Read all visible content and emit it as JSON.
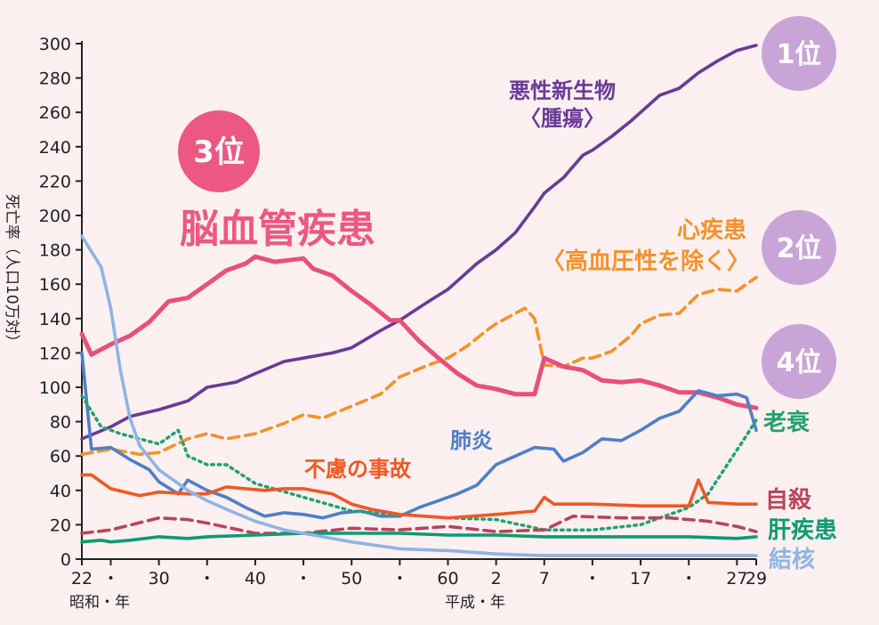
{
  "chart_data": {
    "type": "line",
    "title": "",
    "ylabel": "死亡率（人口10万対）",
    "ylim": [
      0,
      300
    ],
    "yticks": [
      0,
      20,
      40,
      60,
      80,
      100,
      120,
      140,
      160,
      180,
      200,
      220,
      240,
      260,
      280,
      300
    ],
    "x_range": [
      1947,
      2017
    ],
    "xtick_labels": [
      {
        "year": 1947,
        "label": "22"
      },
      {
        "year": 1950,
        "label": "・"
      },
      {
        "year": 1955,
        "label": "30"
      },
      {
        "year": 1960,
        "label": "・"
      },
      {
        "year": 1965,
        "label": "40"
      },
      {
        "year": 1970,
        "label": "・"
      },
      {
        "year": 1975,
        "label": "50"
      },
      {
        "year": 1980,
        "label": "・"
      },
      {
        "year": 1985,
        "label": "60"
      },
      {
        "year": 1990,
        "label": "2"
      },
      {
        "year": 1995,
        "label": "7"
      },
      {
        "year": 2000,
        "label": "・"
      },
      {
        "year": 2005,
        "label": "17"
      },
      {
        "year": 2010,
        "label": "・"
      },
      {
        "year": 2015,
        "label": "27"
      },
      {
        "year": 2017,
        "label": "29"
      }
    ],
    "era_labels": [
      "昭和・年",
      "平成・年"
    ],
    "series": [
      {
        "name": "悪性新生物〈腫瘍〉",
        "color": "#6a3a96",
        "style": "solid",
        "points": [
          [
            1947,
            70
          ],
          [
            1950,
            77
          ],
          [
            1952,
            83
          ],
          [
            1955,
            87
          ],
          [
            1958,
            92
          ],
          [
            1960,
            100
          ],
          [
            1963,
            103
          ],
          [
            1965,
            108
          ],
          [
            1968,
            115
          ],
          [
            1970,
            117
          ],
          [
            1973,
            120
          ],
          [
            1975,
            123
          ],
          [
            1978,
            133
          ],
          [
            1980,
            139
          ],
          [
            1983,
            150
          ],
          [
            1985,
            157
          ],
          [
            1988,
            172
          ],
          [
            1990,
            180
          ],
          [
            1992,
            190
          ],
          [
            1994,
            205
          ],
          [
            1995,
            213
          ],
          [
            1997,
            222
          ],
          [
            1999,
            235
          ],
          [
            2000,
            238
          ],
          [
            2002,
            246
          ],
          [
            2004,
            255
          ],
          [
            2005,
            260
          ],
          [
            2007,
            270
          ],
          [
            2009,
            274
          ],
          [
            2011,
            283
          ],
          [
            2013,
            290
          ],
          [
            2015,
            296
          ],
          [
            2017,
            299
          ]
        ]
      },
      {
        "name": "心疾患〈高血圧性を除く〉",
        "color": "#f3922c",
        "style": "dashed",
        "points": [
          [
            1947,
            61
          ],
          [
            1950,
            64
          ],
          [
            1953,
            61
          ],
          [
            1955,
            62
          ],
          [
            1958,
            70
          ],
          [
            1960,
            73
          ],
          [
            1962,
            70
          ],
          [
            1965,
            73
          ],
          [
            1968,
            79
          ],
          [
            1970,
            84
          ],
          [
            1972,
            82
          ],
          [
            1975,
            89
          ],
          [
            1978,
            96
          ],
          [
            1980,
            106
          ],
          [
            1983,
            113
          ],
          [
            1985,
            117
          ],
          [
            1987,
            124
          ],
          [
            1989,
            133
          ],
          [
            1990,
            137
          ],
          [
            1992,
            143
          ],
          [
            1993,
            146
          ],
          [
            1994,
            140
          ],
          [
            1995,
            113
          ],
          [
            1997,
            112
          ],
          [
            1999,
            117
          ],
          [
            2000,
            117
          ],
          [
            2002,
            121
          ],
          [
            2004,
            130
          ],
          [
            2005,
            137
          ],
          [
            2007,
            142
          ],
          [
            2009,
            143
          ],
          [
            2011,
            154
          ],
          [
            2013,
            157
          ],
          [
            2015,
            156
          ],
          [
            2017,
            164
          ]
        ]
      },
      {
        "name": "脳血管疾患",
        "color": "#e8507a",
        "style": "solid",
        "points": [
          [
            1947,
            131
          ],
          [
            1948,
            119
          ],
          [
            1950,
            125
          ],
          [
            1952,
            130
          ],
          [
            1954,
            138
          ],
          [
            1956,
            150
          ],
          [
            1958,
            152
          ],
          [
            1960,
            160
          ],
          [
            1962,
            168
          ],
          [
            1964,
            172
          ],
          [
            1965,
            176
          ],
          [
            1967,
            173
          ],
          [
            1970,
            175
          ],
          [
            1971,
            169
          ],
          [
            1973,
            165
          ],
          [
            1975,
            156
          ],
          [
            1977,
            148
          ],
          [
            1979,
            139
          ],
          [
            1980,
            139
          ],
          [
            1982,
            127
          ],
          [
            1984,
            117
          ],
          [
            1986,
            108
          ],
          [
            1988,
            101
          ],
          [
            1990,
            99
          ],
          [
            1992,
            96
          ],
          [
            1994,
            96
          ],
          [
            1995,
            117
          ],
          [
            1997,
            112
          ],
          [
            1999,
            110
          ],
          [
            2001,
            104
          ],
          [
            2003,
            103
          ],
          [
            2005,
            104
          ],
          [
            2007,
            101
          ],
          [
            2009,
            97
          ],
          [
            2011,
            97
          ],
          [
            2013,
            94
          ],
          [
            2015,
            90
          ],
          [
            2017,
            88
          ]
        ]
      },
      {
        "name": "肺炎",
        "color": "#4f80c4",
        "style": "solid",
        "points": [
          [
            1947,
            120
          ],
          [
            1948,
            64
          ],
          [
            1950,
            65
          ],
          [
            1952,
            58
          ],
          [
            1954,
            52
          ],
          [
            1955,
            45
          ],
          [
            1957,
            38
          ],
          [
            1958,
            46
          ],
          [
            1960,
            40
          ],
          [
            1962,
            36
          ],
          [
            1964,
            30
          ],
          [
            1966,
            25
          ],
          [
            1968,
            27
          ],
          [
            1970,
            26
          ],
          [
            1972,
            24
          ],
          [
            1974,
            27
          ],
          [
            1976,
            28
          ],
          [
            1978,
            25
          ],
          [
            1980,
            25
          ],
          [
            1982,
            30
          ],
          [
            1984,
            34
          ],
          [
            1986,
            38
          ],
          [
            1988,
            43
          ],
          [
            1990,
            55
          ],
          [
            1992,
            60
          ],
          [
            1994,
            65
          ],
          [
            1996,
            64
          ],
          [
            1997,
            57
          ],
          [
            1999,
            62
          ],
          [
            2001,
            70
          ],
          [
            2003,
            69
          ],
          [
            2005,
            75
          ],
          [
            2007,
            82
          ],
          [
            2009,
            86
          ],
          [
            2011,
            98
          ],
          [
            2013,
            95
          ],
          [
            2015,
            96
          ],
          [
            2016,
            94
          ],
          [
            2017,
            75
          ]
        ]
      },
      {
        "name": "老衰",
        "color": "#22a070",
        "style": "dotted",
        "points": [
          [
            1947,
            95
          ],
          [
            1949,
            77
          ],
          [
            1951,
            73
          ],
          [
            1953,
            70
          ],
          [
            1955,
            67
          ],
          [
            1957,
            75
          ],
          [
            1958,
            60
          ],
          [
            1960,
            55
          ],
          [
            1962,
            55
          ],
          [
            1965,
            44
          ],
          [
            1970,
            36
          ],
          [
            1975,
            28
          ],
          [
            1980,
            26
          ],
          [
            1985,
            24
          ],
          [
            1990,
            23
          ],
          [
            1995,
            17
          ],
          [
            2000,
            17
          ],
          [
            2005,
            20
          ],
          [
            2010,
            30
          ],
          [
            2012,
            38
          ],
          [
            2014,
            55
          ],
          [
            2016,
            72
          ],
          [
            2017,
            81
          ]
        ]
      },
      {
        "name": "不慮の事故",
        "color": "#ec5a24",
        "style": "solid",
        "points": [
          [
            1947,
            49
          ],
          [
            1948,
            49
          ],
          [
            1950,
            41
          ],
          [
            1953,
            37
          ],
          [
            1955,
            39
          ],
          [
            1958,
            38
          ],
          [
            1960,
            38
          ],
          [
            1962,
            42
          ],
          [
            1964,
            41
          ],
          [
            1966,
            40
          ],
          [
            1968,
            41
          ],
          [
            1970,
            41
          ],
          [
            1971,
            40
          ],
          [
            1973,
            38
          ],
          [
            1975,
            32
          ],
          [
            1977,
            29
          ],
          [
            1980,
            26
          ],
          [
            1985,
            24
          ],
          [
            1990,
            26
          ],
          [
            1994,
            28
          ],
          [
            1995,
            36
          ],
          [
            1996,
            32
          ],
          [
            2000,
            32
          ],
          [
            2005,
            31
          ],
          [
            2010,
            31
          ],
          [
            2011,
            46
          ],
          [
            2012,
            33
          ],
          [
            2015,
            32
          ],
          [
            2017,
            32
          ]
        ]
      },
      {
        "name": "自殺",
        "color": "#b84558",
        "style": "dashed",
        "points": [
          [
            1947,
            15
          ],
          [
            1950,
            17
          ],
          [
            1955,
            24
          ],
          [
            1958,
            23
          ],
          [
            1960,
            21
          ],
          [
            1965,
            15
          ],
          [
            1970,
            15
          ],
          [
            1975,
            18
          ],
          [
            1980,
            17
          ],
          [
            1985,
            19
          ],
          [
            1990,
            16
          ],
          [
            1995,
            17
          ],
          [
            1998,
            25
          ],
          [
            2003,
            24
          ],
          [
            2008,
            24
          ],
          [
            2012,
            22
          ],
          [
            2015,
            19
          ],
          [
            2017,
            16
          ]
        ]
      },
      {
        "name": "肝疾患",
        "color": "#0b9b72",
        "style": "solid",
        "points": [
          [
            1947,
            10
          ],
          [
            1949,
            11
          ],
          [
            1950,
            10
          ],
          [
            1952,
            11
          ],
          [
            1955,
            13
          ],
          [
            1958,
            12
          ],
          [
            1960,
            13
          ],
          [
            1965,
            14
          ],
          [
            1970,
            15
          ],
          [
            1975,
            15
          ],
          [
            1980,
            15
          ],
          [
            1985,
            14
          ],
          [
            1990,
            14
          ],
          [
            1995,
            13
          ],
          [
            2000,
            13
          ],
          [
            2005,
            13
          ],
          [
            2010,
            13
          ],
          [
            2015,
            12
          ],
          [
            2017,
            13
          ]
        ]
      },
      {
        "name": "結核",
        "color": "#8fb4e2",
        "style": "solid",
        "points": [
          [
            1947,
            188
          ],
          [
            1949,
            170
          ],
          [
            1950,
            146
          ],
          [
            1951,
            110
          ],
          [
            1952,
            82
          ],
          [
            1953,
            66
          ],
          [
            1955,
            52
          ],
          [
            1958,
            40
          ],
          [
            1960,
            34
          ],
          [
            1962,
            29
          ],
          [
            1965,
            22
          ],
          [
            1968,
            17
          ],
          [
            1970,
            15
          ],
          [
            1975,
            10
          ],
          [
            1980,
            6
          ],
          [
            1985,
            5
          ],
          [
            1990,
            3
          ],
          [
            1995,
            2
          ],
          [
            2000,
            2
          ],
          [
            2005,
            2
          ],
          [
            2010,
            2
          ],
          [
            2017,
            2
          ]
        ]
      }
    ],
    "series_labels": {
      "cancer": [
        "悪性新生物",
        "〈腫瘍〉"
      ],
      "heart": [
        "心疾患",
        "〈高血圧性を除く〉"
      ],
      "stroke": "脳血管疾患",
      "pneumonia": "肺炎",
      "senility": "老衰",
      "accident": "不慮の事故",
      "suicide": "自殺",
      "liver": "肝疾患",
      "tb": "結核"
    },
    "ranks": [
      {
        "label": "1位",
        "color": "#c9a4d6"
      },
      {
        "label": "2位",
        "color": "#c9a4d6"
      },
      {
        "label": "3位",
        "color": "#ec5883"
      },
      {
        "label": "4位",
        "color": "#c9a4d6"
      }
    ]
  }
}
